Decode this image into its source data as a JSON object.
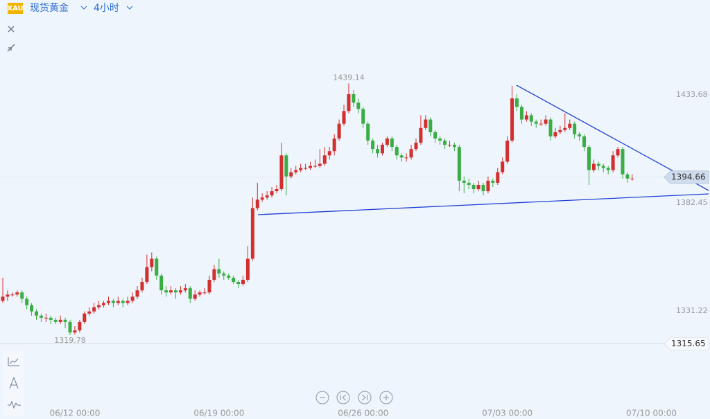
{
  "header": {
    "symbol": "XAU",
    "name": "现货黄金",
    "interval": "4小时"
  },
  "chart_data": {
    "type": "candlestick",
    "up_color": "#d22f2f",
    "down_color": "#3aad45",
    "categories": [
      null,
      null,
      null,
      null,
      null,
      null,
      null,
      null,
      null,
      null,
      null,
      null,
      null,
      null,
      null,
      "06/12 00:00",
      null,
      null,
      null,
      null,
      null,
      null,
      null,
      null,
      null,
      null,
      null,
      null,
      null,
      null,
      null,
      null,
      null,
      null,
      null,
      null,
      null,
      null,
      null,
      null,
      null,
      null,
      null,
      null,
      null,
      "06/19 00:00",
      null,
      null,
      null,
      null,
      null,
      null,
      null,
      null,
      null,
      null,
      null,
      null,
      null,
      null,
      null,
      null,
      null,
      null,
      null,
      null,
      null,
      null,
      null,
      null,
      null,
      null,
      null,
      null,
      null,
      "06/26 00:00",
      null,
      null,
      null,
      null,
      null,
      null,
      null,
      null,
      null,
      null,
      null,
      null,
      null,
      null,
      null,
      null,
      null,
      null,
      null,
      null,
      null,
      null,
      null,
      null,
      null,
      null,
      null,
      null,
      null,
      "07/03 00:00",
      null,
      null,
      null,
      null,
      null,
      null,
      null,
      null,
      null,
      null,
      null,
      null,
      null,
      null,
      null,
      null,
      null,
      null,
      null,
      null,
      null,
      null,
      null,
      null,
      null,
      null,
      null,
      null,
      null,
      "07/10 00:00"
    ],
    "open": [
      1336,
      1338,
      1339,
      1339,
      1340,
      1337,
      1334,
      1331,
      1329,
      1328,
      1328,
      1327,
      1326,
      1327,
      1326,
      1321,
      1322,
      1326,
      1330,
      1331,
      1333,
      1334,
      1335,
      1336,
      1335,
      1336,
      1335,
      1336,
      1338,
      1341,
      1345,
      1352,
      1356,
      1348,
      1341,
      1340,
      1341,
      1340,
      1341,
      1342,
      1337,
      1339,
      1340,
      1340,
      1346,
      1351,
      1349,
      1348,
      1347,
      1345,
      1344,
      1346,
      1356,
      1380,
      1384,
      1385,
      1386,
      1388,
      1389,
      1405,
      1395,
      1397,
      1398,
      1399,
      1399,
      1400,
      1400,
      1401,
      1405,
      1407,
      1413,
      1420,
      1426,
      1434,
      1430,
      1427,
      1420,
      1412,
      1408,
      1406,
      1410,
      1413,
      1409,
      1405,
      1404,
      1404,
      1408,
      1411,
      1418,
      1422,
      1416,
      1413,
      1412,
      1410,
      1410,
      1409,
      1393,
      1392,
      1391,
      1389,
      1391,
      1388,
      1393,
      1392,
      1397,
      1402,
      1412,
      1432,
      1428,
      1422,
      1424,
      1421,
      1420,
      1420,
      1422,
      1414,
      1416,
      1417,
      1418,
      1420,
      1415,
      1414,
      1409,
      1398,
      1401,
      1400,
      1399,
      1398,
      1405,
      1408,
      1396,
      1394,
      null,
      null,
      null,
      null
    ],
    "high": [
      1347,
      1341,
      1340,
      1341,
      1341,
      1338,
      1335,
      1332,
      1330,
      1330,
      1329,
      1328,
      1329,
      1328,
      1327,
      1324,
      1327,
      1331,
      1333,
      1335,
      1336,
      1336,
      1338,
      1337,
      1338,
      1337,
      1338,
      1340,
      1343,
      1347,
      1358,
      1359,
      1357,
      1349,
      1343,
      1343,
      1342,
      1343,
      1344,
      1343,
      1341,
      1341,
      1342,
      1348,
      1353,
      1356,
      1350,
      1349,
      1348,
      1346,
      1348,
      1362,
      1385,
      1392,
      1387,
      1388,
      1390,
      1391,
      1411,
      1406,
      1399,
      1400,
      1401,
      1401,
      1402,
      1403,
      1408,
      1409,
      1409,
      1415,
      1422,
      1429,
      1439.14,
      1436,
      1432,
      1428,
      1421,
      1413,
      1410,
      1411,
      1414,
      1414,
      1410,
      1406,
      1406,
      1410,
      1413,
      1424,
      1424,
      1423,
      1417,
      1414,
      1413,
      1412,
      1411,
      1410,
      1395,
      1394,
      1392,
      1393,
      1392,
      1395,
      1394,
      1399,
      1404,
      1414,
      1438,
      1434,
      1429,
      1426,
      1425,
      1422,
      1422,
      1424,
      1423,
      1418,
      1419,
      1425,
      1422,
      1421,
      1416,
      1415,
      1410,
      1403,
      1402,
      1401,
      1400,
      1407,
      1409,
      1409,
      1397,
      1396,
      null,
      null,
      null,
      null
    ],
    "low": [
      1335,
      1336,
      1338,
      1338,
      1335,
      1332,
      1329,
      1327,
      1326,
      1326,
      1325,
      1325,
      1325,
      1323,
      1319.78,
      1320,
      1321,
      1325,
      1329,
      1330,
      1332,
      1333,
      1334,
      1333,
      1334,
      1333,
      1334,
      1335,
      1337,
      1340,
      1344,
      1350,
      1346,
      1339,
      1338,
      1339,
      1337,
      1339,
      1340,
      1335,
      1336,
      1338,
      1339,
      1339,
      1345,
      1347,
      1346,
      1346,
      1344,
      1342,
      1343,
      1345,
      1355,
      1379,
      1383,
      1384,
      1385,
      1387,
      1388,
      1386,
      1394,
      1396,
      1397,
      1398,
      1398,
      1399,
      1399,
      1400,
      1403,
      1405,
      1412,
      1419,
      1425,
      1428,
      1425,
      1418,
      1410,
      1406,
      1404,
      1405,
      1409,
      1407,
      1403,
      1402,
      1402,
      1403,
      1407,
      1410,
      1417,
      1414,
      1411,
      1410,
      1408,
      1409,
      1407,
      1388,
      1387,
      1389,
      1387,
      1388,
      1386,
      1387,
      1390,
      1391,
      1396,
      1401,
      1411,
      1426,
      1420,
      1421,
      1419,
      1418,
      1419,
      1419,
      1412,
      1413,
      1415,
      1416,
      1417,
      1413,
      1412,
      1407,
      1391,
      1397,
      1398,
      1397,
      1396,
      1397,
      1404,
      1394,
      1392,
      1393,
      null,
      null,
      null,
      null
    ],
    "close": [
      1338,
      1339,
      1339,
      1340,
      1337,
      1334,
      1331,
      1329,
      1328,
      1328,
      1327,
      1326,
      1327,
      1326,
      1321,
      1322,
      1326,
      1330,
      1331,
      1333,
      1334,
      1335,
      1336,
      1335,
      1336,
      1335,
      1336,
      1338,
      1341,
      1345,
      1352,
      1356,
      1348,
      1341,
      1340,
      1341,
      1340,
      1341,
      1342,
      1337,
      1339,
      1340,
      1340,
      1346,
      1351,
      1349,
      1348,
      1347,
      1345,
      1344,
      1346,
      1356,
      1380,
      1384,
      1385,
      1386,
      1388,
      1389,
      1405,
      1395,
      1397,
      1398,
      1399,
      1399,
      1400,
      1400,
      1401,
      1405,
      1407,
      1413,
      1420,
      1426,
      1434,
      1430,
      1427,
      1420,
      1412,
      1408,
      1406,
      1410,
      1413,
      1409,
      1405,
      1404,
      1404,
      1408,
      1411,
      1418,
      1422,
      1416,
      1413,
      1412,
      1410,
      1410,
      1409,
      1393,
      1392,
      1391,
      1389,
      1391,
      1388,
      1393,
      1392,
      1397,
      1402,
      1412,
      1432,
      1428,
      1422,
      1424,
      1421,
      1420,
      1420,
      1422,
      1414,
      1416,
      1417,
      1418,
      1420,
      1415,
      1414,
      1409,
      1398,
      1401,
      1400,
      1399,
      1398,
      1405,
      1408,
      1396,
      1394,
      1394,
      null,
      null,
      null,
      null
    ],
    "ylim": [
      1286.56,
      1478.67
    ],
    "yticks": [
      1433.68,
      1382.45,
      1331.22
    ],
    "price_line": 1394.66,
    "level_line": 1315.65,
    "trendlines": [
      {
        "x": [
          106.9,
          146.9
        ],
        "values": [
          1438.28,
          1388.36
        ],
        "color": "#1f3fd6"
      },
      {
        "x": [
          53.1,
          146.9
        ],
        "values": [
          1376.87,
          1386.72
        ],
        "color": "#1f3fd6"
      }
    ]
  }
}
